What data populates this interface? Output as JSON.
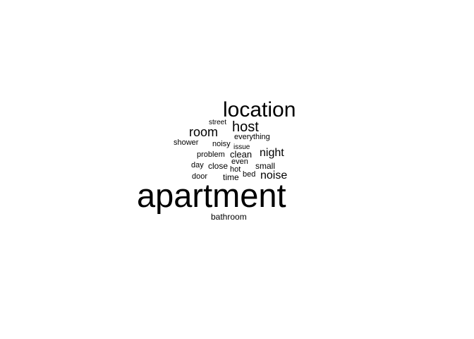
{
  "wordcloud": {
    "text_color": "#000000",
    "background": "#ffffff",
    "words": [
      {
        "text": "apartment"
      },
      {
        "text": "location"
      },
      {
        "text": "host"
      },
      {
        "text": "room"
      },
      {
        "text": "night"
      },
      {
        "text": "noise"
      },
      {
        "text": "clean"
      },
      {
        "text": "small"
      },
      {
        "text": "everything"
      },
      {
        "text": "street"
      },
      {
        "text": "shower"
      },
      {
        "text": "noisy"
      },
      {
        "text": "issue"
      },
      {
        "text": "problem"
      },
      {
        "text": "day"
      },
      {
        "text": "close"
      },
      {
        "text": "even"
      },
      {
        "text": "hot"
      },
      {
        "text": "bed"
      },
      {
        "text": "door"
      },
      {
        "text": "time"
      },
      {
        "text": "bathroom"
      }
    ]
  }
}
